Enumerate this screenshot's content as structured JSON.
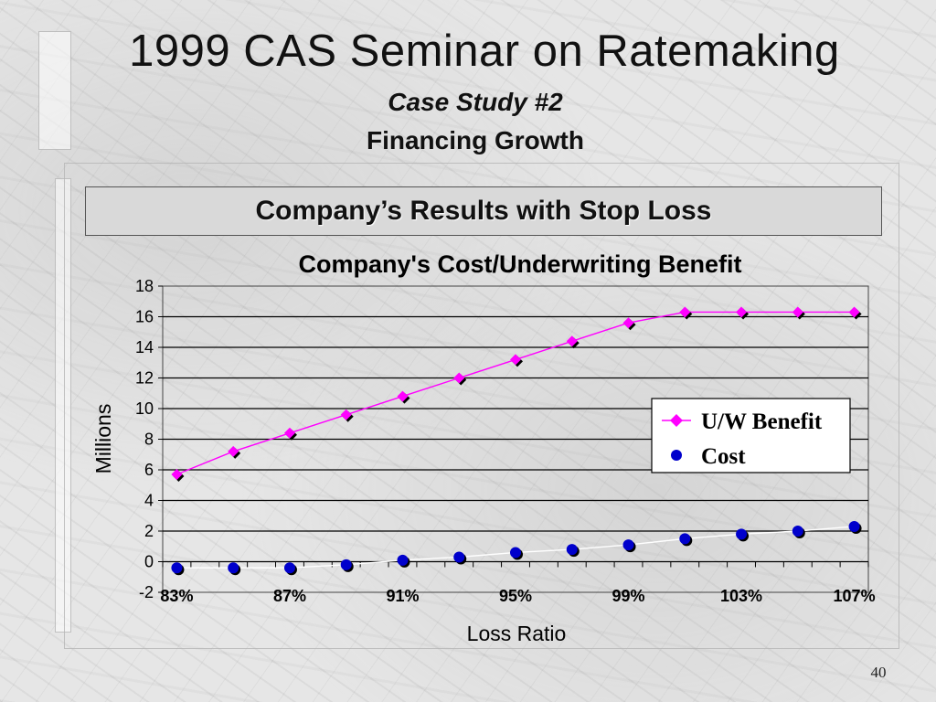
{
  "slide": {
    "title": "1999 CAS Seminar on Ratemaking",
    "subtitle_line1": "Case Study #2",
    "subtitle_line2": "Financing Growth",
    "banner": "Company’s Results with Stop Loss",
    "page_number": "40"
  },
  "chart_data": {
    "type": "line",
    "title": "Company's Cost/Underwriting Benefit",
    "xlabel": "Loss Ratio",
    "ylabel": "Millions",
    "x": [
      "83%",
      "84%",
      "85%",
      "86%",
      "87%",
      "88%",
      "89%",
      "90%",
      "91%",
      "92%",
      "93%",
      "94%",
      "95%",
      "96%",
      "97%",
      "98%",
      "99%",
      "100%",
      "101%",
      "102%",
      "103%",
      "104%",
      "105%",
      "106%",
      "107%"
    ],
    "x_tick_labels": [
      "83%",
      "87%",
      "91%",
      "95%",
      "99%",
      "103%",
      "107%"
    ],
    "y_tick_labels": [
      "18",
      "16",
      "14",
      "12",
      "10",
      "8",
      "6",
      "4",
      "2",
      "0",
      "-2"
    ],
    "ylim": [
      -2,
      18
    ],
    "grid": true,
    "legend_position": "right",
    "series": [
      {
        "name": "U/W Benefit",
        "color": "#ff00ff",
        "marker": "diamond",
        "points": [
          {
            "x": "83%",
            "y": 5.7
          },
          {
            "x": "85%",
            "y": 7.2
          },
          {
            "x": "87%",
            "y": 8.4
          },
          {
            "x": "89%",
            "y": 9.6
          },
          {
            "x": "91%",
            "y": 10.8
          },
          {
            "x": "93%",
            "y": 12.0
          },
          {
            "x": "95%",
            "y": 13.2
          },
          {
            "x": "97%",
            "y": 14.4
          },
          {
            "x": "99%",
            "y": 15.6
          },
          {
            "x": "101%",
            "y": 16.3
          },
          {
            "x": "103%",
            "y": 16.3
          },
          {
            "x": "105%",
            "y": 16.3
          },
          {
            "x": "107%",
            "y": 16.3
          }
        ]
      },
      {
        "name": "Cost",
        "color": "#0000cc",
        "marker": "circle",
        "points": [
          {
            "x": "83%",
            "y": -0.4
          },
          {
            "x": "85%",
            "y": -0.4
          },
          {
            "x": "87%",
            "y": -0.4
          },
          {
            "x": "89%",
            "y": -0.2
          },
          {
            "x": "91%",
            "y": 0.1
          },
          {
            "x": "93%",
            "y": 0.3
          },
          {
            "x": "95%",
            "y": 0.6
          },
          {
            "x": "97%",
            "y": 0.8
          },
          {
            "x": "99%",
            "y": 1.1
          },
          {
            "x": "101%",
            "y": 1.5
          },
          {
            "x": "103%",
            "y": 1.8
          },
          {
            "x": "105%",
            "y": 2.0
          },
          {
            "x": "107%",
            "y": 2.3
          }
        ]
      }
    ]
  }
}
